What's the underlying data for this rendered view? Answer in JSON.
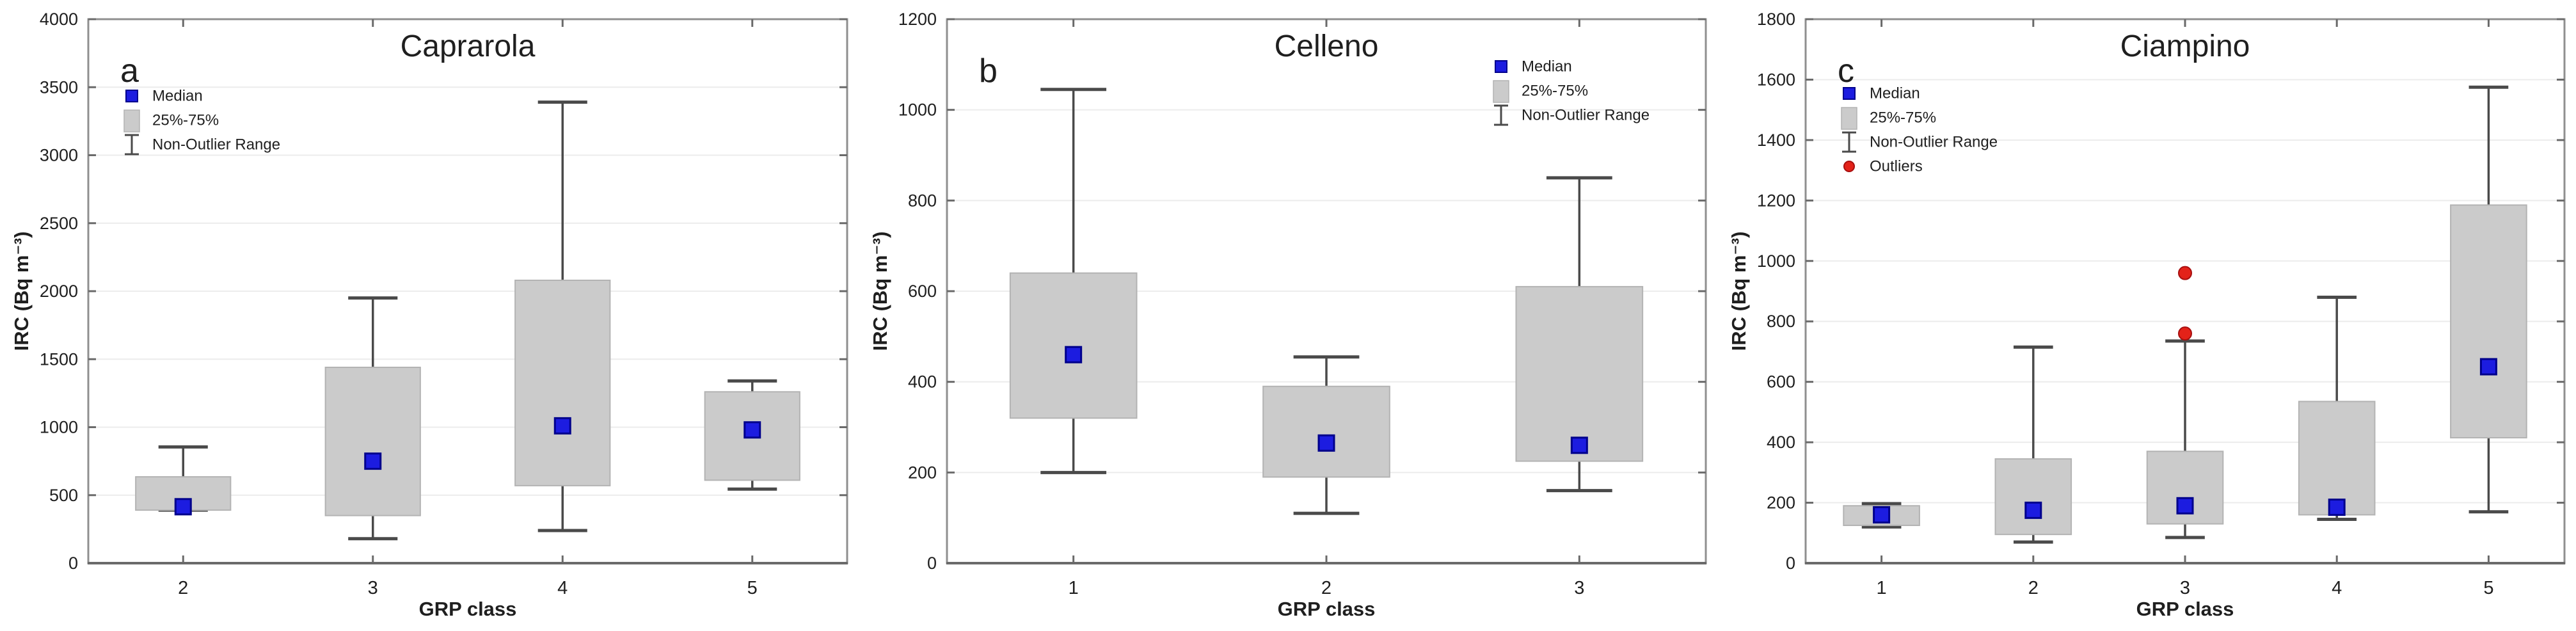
{
  "figure": {
    "description_titles": [
      "Caprarola",
      "Celleno",
      "Ciampino"
    ],
    "x_axis_label": "GRP class",
    "y_axis_label": "IRC (Bq m⁻³)"
  },
  "style": {
    "box_fill": "#cbcbcb",
    "box_border": "#b3b3b3",
    "whisker": "#4a4a4a",
    "median": "#1c1ce0",
    "median_border": "#00008c",
    "outlier": "#e32219",
    "outlier_border": "#a80f0f",
    "grid": "#ececec",
    "frame": "#8f8f8f",
    "axis": "#6a6a6a",
    "text": "#1f1f1f"
  },
  "chart_data": [
    {
      "type": "box",
      "panel_label": "a",
      "title": "Caprarola",
      "xlabel": "GRP class",
      "ylabel": "IRC (Bq m⁻³)",
      "ylim": [
        0,
        4000
      ],
      "ytick_step": 500,
      "grid": "horizontal",
      "legend": [
        "Median",
        "25%-75%",
        "Non-Outlier Range"
      ],
      "legend_position": "top-left",
      "categories": [
        "2",
        "3",
        "4",
        "5"
      ],
      "boxes": [
        {
          "class": "2",
          "whisker_low": 390,
          "q1": 390,
          "median": 415,
          "q3": 635,
          "whisker_high": 855,
          "outliers": []
        },
        {
          "class": "3",
          "whisker_low": 180,
          "q1": 350,
          "median": 750,
          "q3": 1440,
          "whisker_high": 1950,
          "outliers": []
        },
        {
          "class": "4",
          "whisker_low": 240,
          "q1": 570,
          "median": 1010,
          "q3": 2080,
          "whisker_high": 3390,
          "outliers": []
        },
        {
          "class": "5",
          "whisker_low": 545,
          "q1": 610,
          "median": 980,
          "q3": 1260,
          "whisker_high": 1340,
          "outliers": []
        }
      ]
    },
    {
      "type": "box",
      "panel_label": "b",
      "title": "Celleno",
      "xlabel": "GRP class",
      "ylabel": "IRC (Bq m⁻³)",
      "ylim": [
        0,
        1200
      ],
      "ytick_step": 200,
      "grid": "horizontal",
      "legend": [
        "Median",
        "25%-75%",
        "Non-Outlier Range"
      ],
      "legend_position": "top-right",
      "categories": [
        "1",
        "2",
        "3"
      ],
      "boxes": [
        {
          "class": "1",
          "whisker_low": 200,
          "q1": 320,
          "median": 460,
          "q3": 640,
          "whisker_high": 1045,
          "outliers": []
        },
        {
          "class": "2",
          "whisker_low": 110,
          "q1": 190,
          "median": 265,
          "q3": 390,
          "whisker_high": 455,
          "outliers": []
        },
        {
          "class": "3",
          "whisker_low": 160,
          "q1": 225,
          "median": 260,
          "q3": 610,
          "whisker_high": 850,
          "outliers": []
        }
      ]
    },
    {
      "type": "box",
      "panel_label": "c",
      "title": "Ciampino",
      "xlabel": "GRP class",
      "ylabel": "IRC (Bq m⁻³)",
      "ylim": [
        0,
        1800
      ],
      "ytick_step": 200,
      "grid": "horizontal",
      "legend": [
        "Median",
        "25%-75%",
        "Non-Outlier Range",
        "Outliers"
      ],
      "legend_position": "top-left",
      "categories": [
        "1",
        "2",
        "3",
        "4",
        "5"
      ],
      "boxes": [
        {
          "class": "1",
          "whisker_low": 120,
          "q1": 125,
          "median": 160,
          "q3": 190,
          "whisker_high": 197,
          "outliers": []
        },
        {
          "class": "2",
          "whisker_low": 70,
          "q1": 95,
          "median": 175,
          "q3": 345,
          "whisker_high": 715,
          "outliers": []
        },
        {
          "class": "3",
          "whisker_low": 85,
          "q1": 130,
          "median": 190,
          "q3": 370,
          "whisker_high": 735,
          "outliers": [
            760,
            960
          ]
        },
        {
          "class": "4",
          "whisker_low": 145,
          "q1": 160,
          "median": 185,
          "q3": 535,
          "whisker_high": 880,
          "outliers": []
        },
        {
          "class": "5",
          "whisker_low": 170,
          "q1": 415,
          "median": 650,
          "q3": 1185,
          "whisker_high": 1575,
          "outliers": []
        }
      ]
    }
  ]
}
